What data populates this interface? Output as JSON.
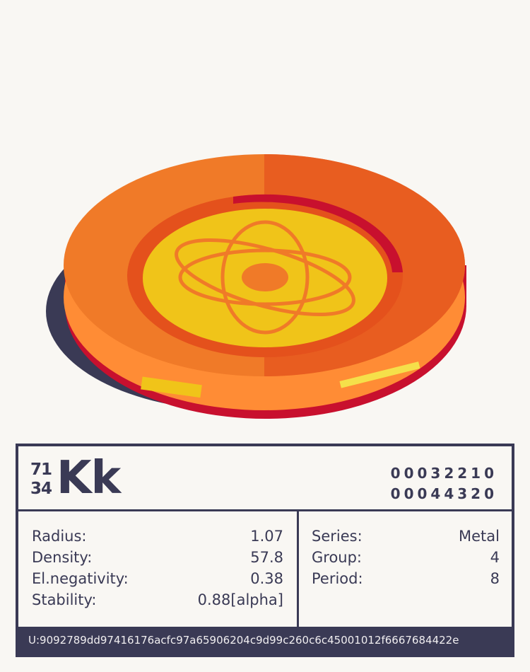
{
  "element": {
    "mass_number": "71",
    "atomic_number": "34",
    "symbol": "Kk",
    "code_lines": [
      "00032210",
      "00044320"
    ],
    "properties_left": [
      {
        "label": "Radius:",
        "value": "1.07"
      },
      {
        "label": "Density:",
        "value": "57.8"
      },
      {
        "label": "El.negativity:",
        "value": "0.38"
      },
      {
        "label": "Stability:",
        "value": "0.88[alpha]"
      }
    ],
    "properties_right": [
      {
        "label": "Series:",
        "value": "Metal"
      },
      {
        "label": "Group:",
        "value": "4"
      },
      {
        "label": "Period:",
        "value": "8"
      }
    ],
    "uid": "U:9092789dd97416176acfc97a65906204c9d99c260c6c45001012f6667684422e"
  },
  "colors": {
    "dark": "#3a3a55",
    "orange": "#f07a28",
    "red": "#c8102e",
    "yellow": "#f0c419",
    "background": "#f9f7f3"
  },
  "coin_icon": "atom-icon"
}
